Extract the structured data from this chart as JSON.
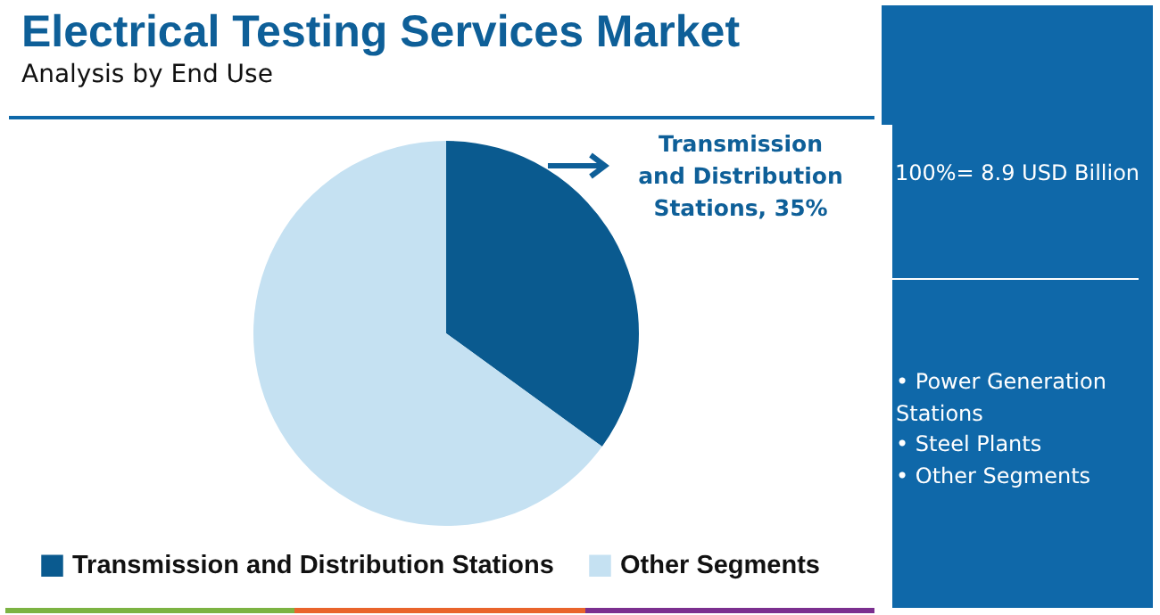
{
  "chart_data": {
    "type": "pie",
    "title": "Electrical Testing Services Market",
    "subtitle": "Analysis by End Use",
    "categories": [
      "Transmission and Distribution Stations",
      "Other Segments"
    ],
    "values": [
      35,
      65
    ],
    "colors": [
      "#0a5a8f",
      "#c5e1f2"
    ],
    "legend": "bottom",
    "annotations": [
      "Transmission and Distribution Stations, 35%",
      "100%= 8.9 USD Billion",
      "• Power Generation Stations",
      "• Steel Plants",
      "• Other Segments"
    ]
  }
}
